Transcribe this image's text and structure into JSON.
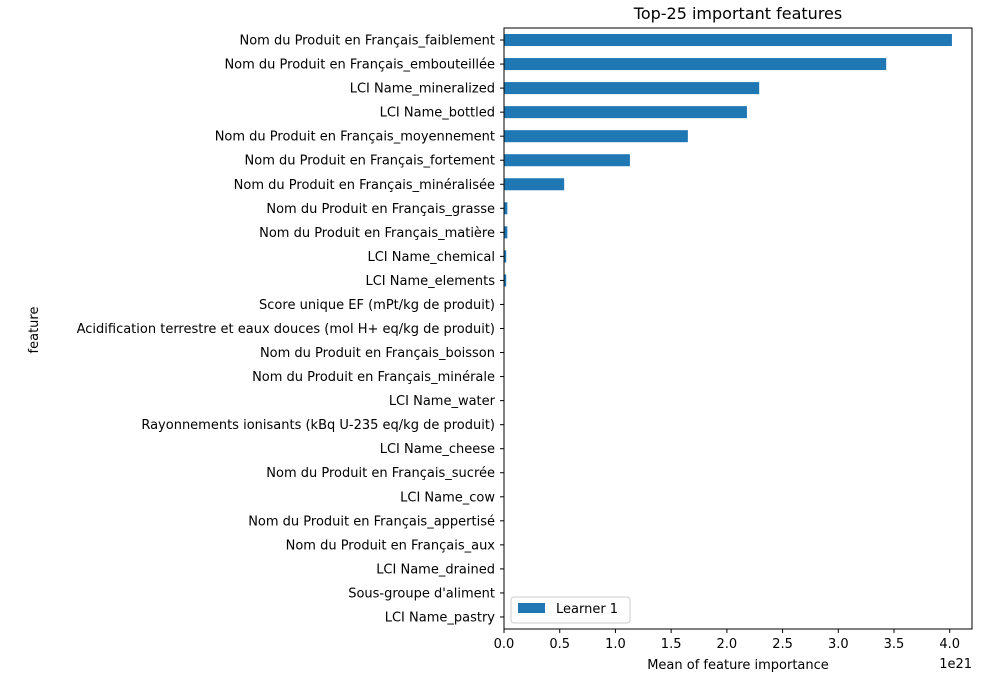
{
  "chart_data": {
    "type": "bar",
    "orientation": "horizontal",
    "title": "Top-25 important features",
    "xlabel": "Mean of feature importance",
    "ylabel": "feature",
    "x_offset_label": "1e21",
    "xlim": [
      0,
      4.2
    ],
    "xticks": [
      "0.0",
      "0.5",
      "1.0",
      "1.5",
      "2.0",
      "2.5",
      "3.0",
      "3.5",
      "4.0"
    ],
    "grid": false,
    "legend_position": "lower-left",
    "bar_color": "#1f77b4",
    "categories": [
      "Nom du Produit en Français_faiblement",
      "Nom du Produit en Français_embouteillée",
      "LCI Name_mineralized",
      "LCI Name_bottled",
      "Nom du Produit en Français_moyennement",
      "Nom du Produit en Français_fortement",
      "Nom du Produit en Français_minéralisée",
      "Nom du Produit en Français_grasse",
      "Nom du Produit en Français_matière",
      "LCI Name_chemical",
      "LCI Name_elements",
      "Score unique EF (mPt/kg de produit)",
      "Acidification terrestre et eaux douces (mol H+ eq/kg de produit)",
      "Nom du Produit en Français_boisson",
      "Nom du Produit en Français_minérale",
      "LCI Name_water",
      "Rayonnements ionisants (kBq U-235 eq/kg de produit)",
      "LCI Name_cheese",
      "Nom du Produit en Français_sucrée",
      "LCI Name_cow",
      "Nom du Produit en Français_appertisé",
      "Nom du Produit en Français_aux",
      "LCI Name_drained",
      "Sous-groupe d'aliment",
      "LCI Name_pastry"
    ],
    "series": [
      {
        "name": "Learner 1",
        "values": [
          4.02,
          3.43,
          2.29,
          2.18,
          1.65,
          1.13,
          0.54,
          0.03,
          0.03,
          0.02,
          0.02,
          0.0,
          0.0,
          0.0,
          0.0,
          0.0,
          0.0,
          0.0,
          0.0,
          0.0,
          0.0,
          0.0,
          0.0,
          0.0,
          0.0
        ]
      }
    ]
  }
}
